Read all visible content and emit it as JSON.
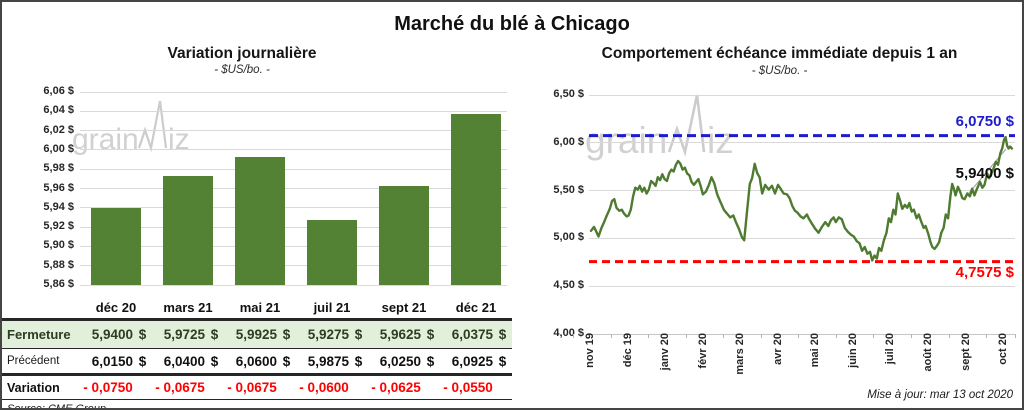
{
  "page": {
    "title": "Marché du blé à Chicago",
    "watermark_prefix": "grain",
    "watermark_suffix": "iz",
    "updated": "Mise à jour: mar 13 oct 2020"
  },
  "colors": {
    "bar_green": "#548235",
    "line_green": "#4e7b2f",
    "high_blue": "#1c1ccd",
    "low_red": "#fe0000",
    "table_row_green": "#e2efda",
    "variation_red": "#ff0000",
    "grid_gray": "#d9d9d9",
    "watermark_gray": "#c9c9c9"
  },
  "table": {
    "rows": [
      {
        "label": "Fermeture",
        "style": "fermeture",
        "currency": "$",
        "values": [
          "5,9400",
          "5,9725",
          "5,9925",
          "5,9275",
          "5,9625",
          "6,0375"
        ]
      },
      {
        "label": "Précédent",
        "style": "precedent",
        "currency": "$",
        "values": [
          "6,0150",
          "6,0400",
          "6,0600",
          "5,9875",
          "6,0250",
          "6,0925"
        ]
      },
      {
        "label": "Variation",
        "style": "variation",
        "currency": "",
        "values": [
          "- 0,0750",
          "- 0,0675",
          "- 0,0675",
          "- 0,0600",
          "- 0,0625",
          "- 0,0550"
        ]
      }
    ],
    "source": "Source: CME Group"
  },
  "chart_data": [
    {
      "id": "variation-journaliere",
      "type": "bar",
      "title": "Variation journalière",
      "subtitle": "- $US/bo. -",
      "categories": [
        "déc 20",
        "mars 21",
        "mai 21",
        "juil 21",
        "sept 21",
        "déc 21"
      ],
      "values": [
        5.94,
        5.9725,
        5.9925,
        5.9275,
        5.9625,
        6.0375
      ],
      "ylim": [
        5.86,
        6.06
      ],
      "ytick_labels": [
        "6,06 $",
        "6,04 $",
        "6,02 $",
        "6,00 $",
        "5,98 $",
        "5,96 $",
        "5,94 $",
        "5,92 $",
        "5,90 $",
        "5,88 $",
        "5,86 $"
      ],
      "grid": true,
      "bar_color": "#548235"
    },
    {
      "id": "echeance-immediate-1an",
      "type": "line",
      "title": "Comportement échéance immédiate depuis 1 an",
      "subtitle": "- $US/bo. -",
      "x_labels": [
        "nov 19",
        "déc 19",
        "janv 20",
        "févr 20",
        "mars 20",
        "avr 20",
        "mai 20",
        "juin 20",
        "juil 20",
        "août 20",
        "sept 20",
        "oct 20"
      ],
      "ylim": [
        4.0,
        6.5
      ],
      "ytick_values": [
        6.5,
        6.0,
        5.5,
        5.0,
        4.5,
        4.0
      ],
      "ytick_labels": [
        "6,50 $",
        "6,00 $",
        "5,50 $",
        "5,00 $",
        "4,50 $",
        "4,00 $"
      ],
      "grid": true,
      "line_color": "#4e7b2f",
      "high_line": {
        "value": 6.075,
        "label": "6,0750 $",
        "color": "#1c1ccd"
      },
      "low_line": {
        "value": 4.7575,
        "label": "4,7575 $",
        "color": "#fe0000"
      },
      "last_point": {
        "value": 5.94,
        "label": "5,9400 $"
      },
      "points": [
        [
          0.0,
          5.08
        ],
        [
          0.08,
          5.12
        ],
        [
          0.14,
          5.07
        ],
        [
          0.2,
          5.02
        ],
        [
          0.28,
          5.11
        ],
        [
          0.35,
          5.17
        ],
        [
          0.42,
          5.24
        ],
        [
          0.5,
          5.31
        ],
        [
          0.56,
          5.39
        ],
        [
          0.62,
          5.41
        ],
        [
          0.68,
          5.32
        ],
        [
          0.75,
          5.29
        ],
        [
          0.82,
          5.3
        ],
        [
          0.88,
          5.26
        ],
        [
          0.95,
          5.23
        ],
        [
          1.0,
          5.24
        ],
        [
          1.06,
          5.3
        ],
        [
          1.12,
          5.44
        ],
        [
          1.18,
          5.53
        ],
        [
          1.25,
          5.51
        ],
        [
          1.3,
          5.55
        ],
        [
          1.36,
          5.49
        ],
        [
          1.42,
          5.53
        ],
        [
          1.48,
          5.47
        ],
        [
          1.54,
          5.51
        ],
        [
          1.6,
          5.6
        ],
        [
          1.66,
          5.58
        ],
        [
          1.72,
          5.55
        ],
        [
          1.78,
          5.64
        ],
        [
          1.84,
          5.61
        ],
        [
          1.9,
          5.67
        ],
        [
          1.96,
          5.62
        ],
        [
          2.02,
          5.6
        ],
        [
          2.08,
          5.68
        ],
        [
          2.14,
          5.72
        ],
        [
          2.2,
          5.7
        ],
        [
          2.26,
          5.77
        ],
        [
          2.32,
          5.81
        ],
        [
          2.38,
          5.78
        ],
        [
          2.44,
          5.72
        ],
        [
          2.5,
          5.74
        ],
        [
          2.56,
          5.68
        ],
        [
          2.62,
          5.66
        ],
        [
          2.68,
          5.59
        ],
        [
          2.74,
          5.56
        ],
        [
          2.8,
          5.59
        ],
        [
          2.86,
          5.62
        ],
        [
          2.92,
          5.55
        ],
        [
          2.98,
          5.46
        ],
        [
          3.06,
          5.49
        ],
        [
          3.14,
          5.56
        ],
        [
          3.21,
          5.64
        ],
        [
          3.28,
          5.58
        ],
        [
          3.36,
          5.46
        ],
        [
          3.45,
          5.38
        ],
        [
          3.54,
          5.3
        ],
        [
          3.62,
          5.26
        ],
        [
          3.71,
          5.22
        ],
        [
          3.79,
          5.24
        ],
        [
          3.86,
          5.17
        ],
        [
          3.94,
          5.1
        ],
        [
          4.02,
          5.01
        ],
        [
          4.08,
          4.98
        ],
        [
          4.16,
          5.3
        ],
        [
          4.23,
          5.57
        ],
        [
          4.29,
          5.63
        ],
        [
          4.36,
          5.78
        ],
        [
          4.43,
          5.68
        ],
        [
          4.49,
          5.64
        ],
        [
          4.56,
          5.47
        ],
        [
          4.64,
          5.56
        ],
        [
          4.73,
          5.51
        ],
        [
          4.82,
          5.55
        ],
        [
          4.9,
          5.47
        ],
        [
          4.98,
          5.56
        ],
        [
          5.05,
          5.52
        ],
        [
          5.13,
          5.47
        ],
        [
          5.22,
          5.46
        ],
        [
          5.29,
          5.42
        ],
        [
          5.36,
          5.34
        ],
        [
          5.43,
          5.29
        ],
        [
          5.5,
          5.27
        ],
        [
          5.58,
          5.23
        ],
        [
          5.66,
          5.21
        ],
        [
          5.75,
          5.25
        ],
        [
          5.81,
          5.2
        ],
        [
          5.89,
          5.15
        ],
        [
          5.97,
          5.1
        ],
        [
          6.06,
          5.06
        ],
        [
          6.15,
          5.12
        ],
        [
          6.24,
          5.17
        ],
        [
          6.32,
          5.13
        ],
        [
          6.39,
          5.19
        ],
        [
          6.46,
          5.22
        ],
        [
          6.52,
          5.17
        ],
        [
          6.6,
          5.22
        ],
        [
          6.68,
          5.2
        ],
        [
          6.76,
          5.11
        ],
        [
          6.84,
          5.07
        ],
        [
          6.92,
          5.04
        ],
        [
          7.0,
          5.02
        ],
        [
          7.08,
          4.97
        ],
        [
          7.15,
          4.95
        ],
        [
          7.22,
          4.87
        ],
        [
          7.29,
          4.91
        ],
        [
          7.36,
          4.84
        ],
        [
          7.43,
          4.86
        ],
        [
          7.49,
          4.77
        ],
        [
          7.55,
          4.82
        ],
        [
          7.61,
          4.79
        ],
        [
          7.67,
          4.9
        ],
        [
          7.73,
          4.87
        ],
        [
          7.8,
          4.98
        ],
        [
          7.87,
          5.06
        ],
        [
          7.93,
          5.21
        ],
        [
          7.99,
          5.17
        ],
        [
          8.05,
          5.3
        ],
        [
          8.11,
          5.25
        ],
        [
          8.17,
          5.47
        ],
        [
          8.23,
          5.4
        ],
        [
          8.29,
          5.31
        ],
        [
          8.36,
          5.35
        ],
        [
          8.42,
          5.32
        ],
        [
          8.48,
          5.37
        ],
        [
          8.54,
          5.28
        ],
        [
          8.6,
          5.3
        ],
        [
          8.67,
          5.21
        ],
        [
          8.73,
          5.25
        ],
        [
          8.8,
          5.17
        ],
        [
          8.86,
          5.11
        ],
        [
          8.91,
          5.13
        ],
        [
          8.98,
          5.05
        ],
        [
          9.04,
          4.96
        ],
        [
          9.09,
          4.91
        ],
        [
          9.15,
          4.89
        ],
        [
          9.21,
          4.92
        ],
        [
          9.27,
          4.96
        ],
        [
          9.33,
          5.06
        ],
        [
          9.39,
          5.11
        ],
        [
          9.45,
          5.25
        ],
        [
          9.51,
          5.21
        ],
        [
          9.57,
          5.44
        ],
        [
          9.62,
          5.57
        ],
        [
          9.67,
          5.51
        ],
        [
          9.71,
          5.45
        ],
        [
          9.77,
          5.54
        ],
        [
          9.83,
          5.49
        ],
        [
          9.89,
          5.42
        ],
        [
          9.95,
          5.41
        ],
        [
          10.02,
          5.47
        ],
        [
          10.09,
          5.44
        ],
        [
          10.15,
          5.52
        ],
        [
          10.21,
          5.45
        ],
        [
          10.28,
          5.52
        ],
        [
          10.36,
          5.59
        ],
        [
          10.42,
          5.53
        ],
        [
          10.48,
          5.56
        ],
        [
          10.55,
          5.68
        ],
        [
          10.6,
          5.63
        ],
        [
          10.66,
          5.68
        ],
        [
          10.72,
          5.73
        ],
        [
          10.78,
          5.8
        ],
        [
          10.84,
          5.77
        ],
        [
          10.9,
          5.89
        ],
        [
          10.95,
          5.94
        ],
        [
          11.0,
          6.03
        ],
        [
          11.04,
          6.06
        ],
        [
          11.08,
          5.97
        ],
        [
          11.12,
          5.94
        ],
        [
          11.16,
          5.96
        ],
        [
          11.21,
          5.94
        ]
      ]
    }
  ]
}
